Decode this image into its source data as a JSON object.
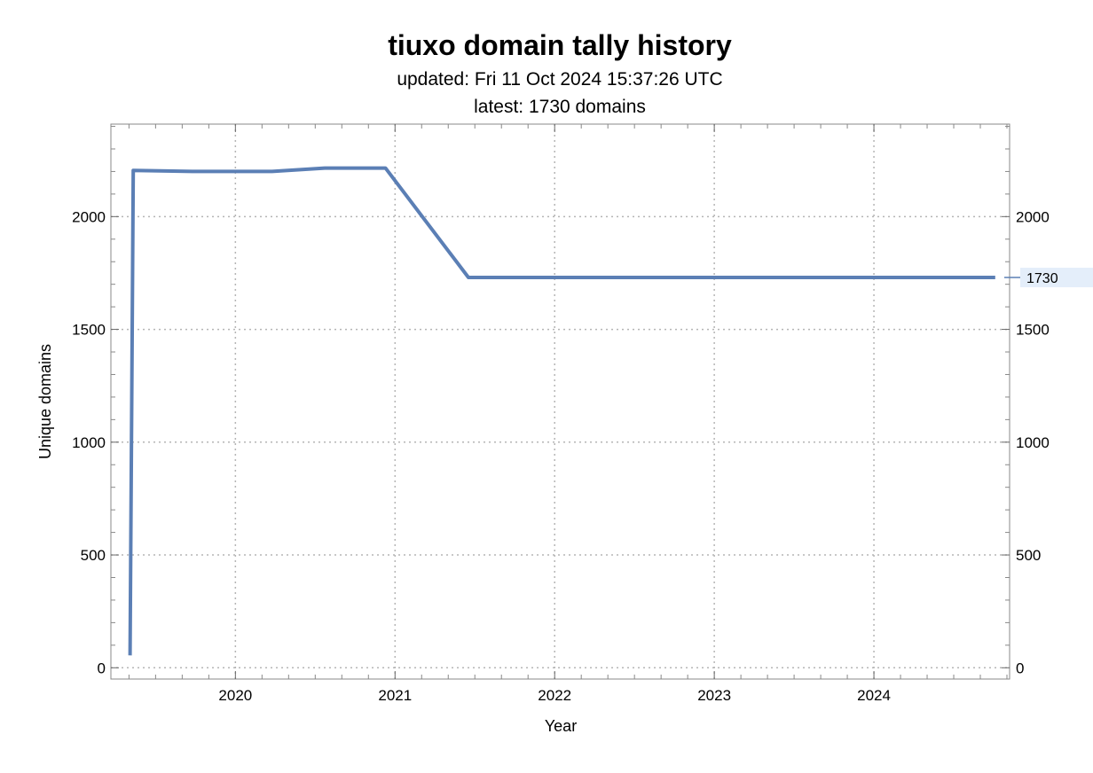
{
  "chart_data": {
    "type": "line",
    "title": "tiuxo domain tally history",
    "subtitle": "updated: Fri 11 Oct 2024 15:37:26 UTC",
    "subtitle2": "latest: 1730 domains",
    "xlabel": "Year",
    "ylabel": "Unique domains",
    "xlim": [
      2019.22,
      2024.85
    ],
    "ylim": [
      -50,
      2410
    ],
    "x_ticks": [
      2020,
      2021,
      2022,
      2023,
      2024
    ],
    "x_tick_labels": [
      "2020",
      "2021",
      "2022",
      "2023",
      "2024"
    ],
    "y_ticks": [
      0,
      500,
      1000,
      1500,
      2000
    ],
    "y_tick_labels": [
      "0",
      "500",
      "1000",
      "1500",
      "2000"
    ],
    "grid": true,
    "series": [
      {
        "color": "#5b7fb5",
        "x": [
          2019.34,
          2019.36,
          2019.73,
          2020.23,
          2020.56,
          2020.94,
          2021.46,
          2024.76
        ],
        "y": [
          55,
          2205,
          2200,
          2200,
          2215,
          2215,
          1730,
          1730
        ]
      }
    ],
    "callout": {
      "label": "1730",
      "value": 1730
    }
  }
}
